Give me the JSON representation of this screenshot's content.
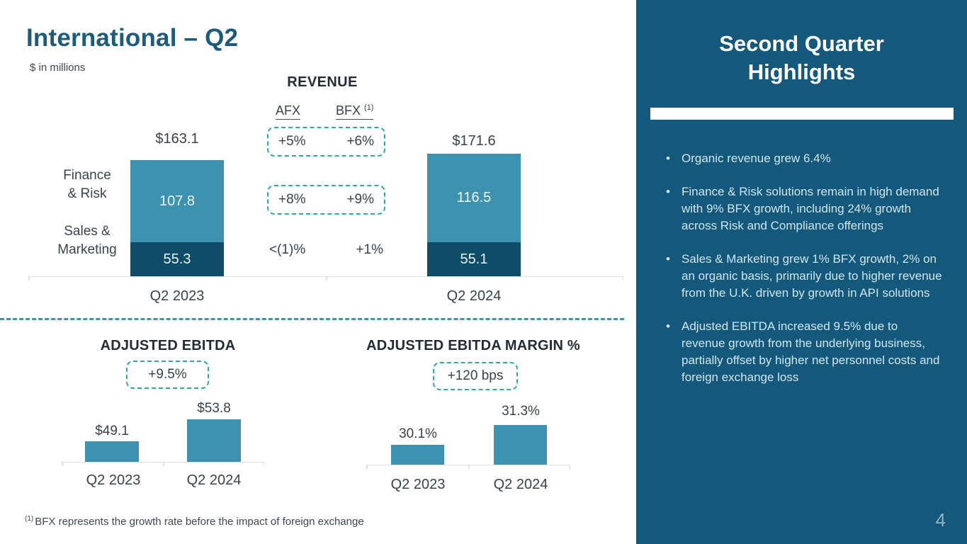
{
  "slide": {
    "title": "International – Q2",
    "subtitle": "$ in millions",
    "footnote_sup": "(1)",
    "footnote": "BFX represents the growth rate before the impact of foreign exchange",
    "page_number": "4"
  },
  "chart_data": [
    {
      "id": "revenue",
      "type": "bar",
      "variant": "stacked-column",
      "title": "REVENUE",
      "unit": "$ in millions",
      "categories": [
        "Q2 2023",
        "Q2 2024"
      ],
      "series": [
        {
          "name": "Finance & Risk",
          "values": [
            107.8,
            116.5
          ]
        },
        {
          "name": "Sales & Marketing",
          "values": [
            55.3,
            55.1
          ]
        }
      ],
      "totals": [
        "$163.1",
        "$171.6"
      ],
      "row_labels": [
        [
          "Finance",
          "& Risk"
        ],
        [
          "Sales &",
          "Marketing"
        ]
      ],
      "growth_header": {
        "afx": "AFX",
        "bfx": "BFX",
        "bfx_sup": "(1)"
      },
      "growth_rows": [
        {
          "level": "total",
          "afx": "+5%",
          "bfx": "+6%",
          "boxed": true
        },
        {
          "level": "Finance & Risk",
          "afx": "+8%",
          "bfx": "+9%",
          "boxed": true
        },
        {
          "level": "Sales & Marketing",
          "afx": "<(1)%",
          "bfx": "+1%",
          "boxed": false
        }
      ],
      "ylim": [
        0,
        180
      ],
      "legend": false,
      "grid": false
    },
    {
      "id": "adjusted-ebitda",
      "type": "bar",
      "title": "ADJUSTED EBITDA",
      "growth_badge": "+9.5%",
      "categories": [
        "Q2 2023",
        "Q2 2024"
      ],
      "values": [
        49.1,
        53.8
      ],
      "value_labels": [
        "$49.1",
        "$53.8"
      ],
      "ylim": [
        0,
        60
      ],
      "legend": false,
      "grid": false
    },
    {
      "id": "adjusted-ebitda-margin",
      "type": "bar",
      "title": "ADJUSTED EBITDA MARGIN %",
      "growth_badge": "+120 bps",
      "categories": [
        "Q2 2023",
        "Q2 2024"
      ],
      "values": [
        30.1,
        31.3
      ],
      "value_labels": [
        "30.1%",
        "31.3%"
      ],
      "ylim": [
        0,
        35
      ],
      "legend": false,
      "grid": false
    }
  ],
  "sidebar": {
    "title": "Second Quarter Highlights",
    "bullets": [
      "Organic revenue grew 6.4%",
      "Finance & Risk solutions remain in high demand with 9% BFX growth, including 24% growth across Risk and Compliance offerings",
      "Sales & Marketing grew 1% BFX growth, 2% on an organic basis, primarily due to higher revenue from the U.K. driven by growth in API solutions",
      "Adjusted EBITDA increased 9.5% due to revenue growth from the underlying business, partially offset by higher net personnel costs and foreign exchange loss"
    ]
  },
  "colors": {
    "bar_light": "#3D92AF",
    "bar_dark": "#0E4C68",
    "accent_dashed": "#2FA8A8",
    "sidebar_bg": "#14587B",
    "title_text": "#1B5B7B",
    "body_text": "#39424A",
    "axis_line": "#D9E1E7",
    "bullet_text": "#CFE7F3",
    "page_number_text": "#8FB2C4"
  }
}
